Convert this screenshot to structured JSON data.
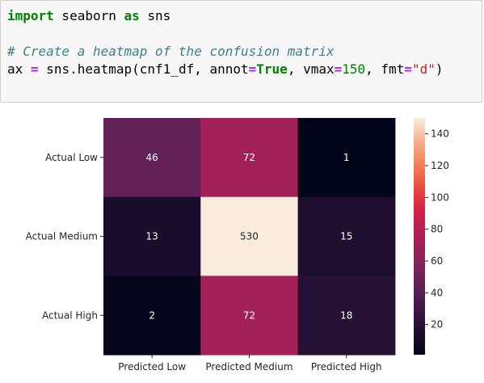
{
  "code": {
    "line1": {
      "kw_import": "import",
      "module": " seaborn ",
      "kw_as": "as",
      "alias": " sns"
    },
    "line2": {
      "comment": "# Create a heatmap of the confusion matrix"
    },
    "line3": {
      "lhs": "ax ",
      "eq": "=",
      "call": " sns.heatmap(cnf1_df, annot",
      "eq2": "=",
      "true_kw": "True",
      "vmax_arg": ", vmax",
      "eq3": "=",
      "vmax_val": "150",
      "fmt_arg": ", fmt",
      "eq4": "=",
      "fmt_val": "\"d\"",
      "close": ")"
    }
  },
  "chart_data": {
    "type": "heatmap",
    "row_labels": [
      "Actual Low",
      "Actual Medium",
      "Actual High"
    ],
    "col_labels": [
      "Predicted Low",
      "Predicted Medium",
      "Predicted High"
    ],
    "values": [
      [
        46,
        72,
        1
      ],
      [
        13,
        530,
        15
      ],
      [
        2,
        72,
        18
      ]
    ],
    "vmin": 1,
    "vmax": 150,
    "colormap": "rocket",
    "colorbar_ticks": [
      20,
      40,
      60,
      80,
      100,
      120,
      140
    ],
    "annotations": true
  },
  "colors": {
    "annot_light": "#ffffff",
    "annot_dark": "#262626"
  }
}
